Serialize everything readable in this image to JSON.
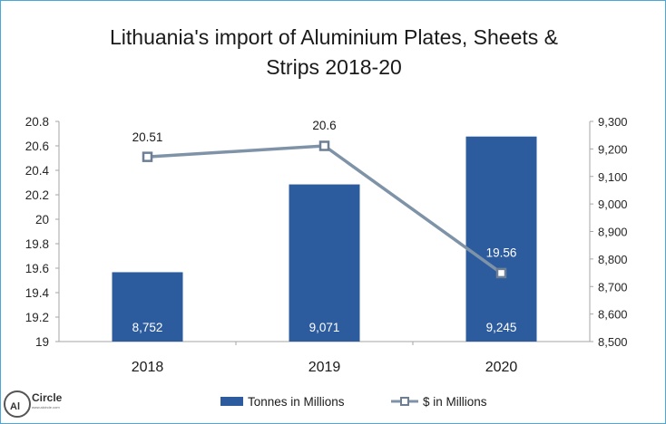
{
  "title": "Lithuania's import of Aluminium Plates, Sheets & Strips 2018-20",
  "title_lines": [
    "Lithuania's import of Aluminium Plates, Sheets &",
    "Strips 2018-20"
  ],
  "logo": {
    "badge": "Al",
    "wordmark": "Circle",
    "url": "www.alcircle.com"
  },
  "chart_data": {
    "type": "bar",
    "categories": [
      "2018",
      "2019",
      "2020"
    ],
    "series": [
      {
        "name": "Tonnes in Millions",
        "kind": "bar",
        "axis": "right",
        "values": [
          8752,
          9071,
          9245
        ],
        "labels": [
          "8,752",
          "9,071",
          "9,245"
        ],
        "color": "#2d5c9e"
      },
      {
        "name": "$ in Millions",
        "kind": "line",
        "axis": "left",
        "values": [
          20.51,
          20.6,
          19.56
        ],
        "labels": [
          "20.51",
          "20.6",
          "19.56"
        ],
        "color": "#7f93a8"
      }
    ],
    "y_left": {
      "min": 19,
      "max": 20.8,
      "ticks": [
        "19",
        "19.2",
        "19.4",
        "19.6",
        "19.8",
        "20",
        "20.2",
        "20.4",
        "20.6",
        "20.8"
      ]
    },
    "y_right": {
      "min": 8500,
      "max": 9300,
      "ticks": [
        "8,500",
        "8,600",
        "8,700",
        "8,800",
        "8,900",
        "9,000",
        "9,100",
        "9,200",
        "9,300"
      ]
    },
    "xlabel": "",
    "ylabel": "",
    "grid": false,
    "legend_position": "bottom"
  }
}
